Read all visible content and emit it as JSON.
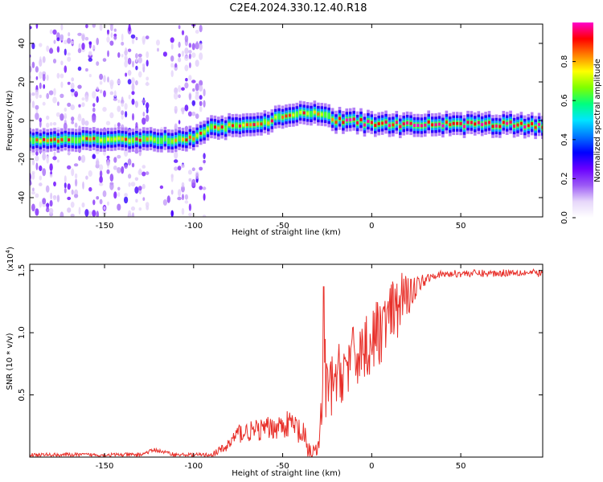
{
  "title": "C2E4.2024.330.12.40.R18",
  "colors": {
    "snr_line": "#e8302a",
    "colormap": [
      "#ffffff",
      "#e6d6fa",
      "#9b59f5",
      "#6a00ff",
      "#0000ff",
      "#0077ff",
      "#00e5ff",
      "#00ff7f",
      "#7fff00",
      "#ffff00",
      "#ff8000",
      "#ff0000",
      "#ff00cc"
    ]
  },
  "chart_data": [
    {
      "type": "heatmap",
      "name": "spectrogram",
      "xlabel": "Height of straight line (km)",
      "ylabel": "Frequency (Hz)",
      "xlim": [
        -192,
        96
      ],
      "ylim": [
        -50,
        50
      ],
      "xticks": [
        -150,
        -100,
        -50,
        0,
        50
      ],
      "yticks": [
        -40,
        -20,
        0,
        20,
        40
      ],
      "ridge": {
        "x": [
          -192,
          -170,
          -150,
          -130,
          -110,
          -100,
          -95,
          -90,
          -80,
          -70,
          -60,
          -50,
          -40,
          -30,
          -25,
          -20,
          -10,
          0,
          20,
          50,
          80,
          96
        ],
        "y": [
          -10,
          -10,
          -10,
          -10,
          -10,
          -9,
          -6,
          -4,
          -3,
          -1,
          -1,
          2,
          3,
          4,
          2,
          0,
          0,
          -2,
          -2,
          -2,
          -2,
          -3
        ]
      },
      "colorbar": {
        "label": "Normalized spectral amplitude",
        "range": [
          0,
          1
        ],
        "ticks": [
          "0.0",
          "0.2",
          "0.4",
          "0.6",
          "0.8"
        ]
      }
    },
    {
      "type": "line",
      "name": "snr",
      "xlabel": "Height of straight line (km)",
      "ylabel": "SNR (10 * v/v)",
      "exponent_label": "(x10",
      "exponent_power": "4",
      "exponent_close": ")",
      "xlim": [
        -192,
        96
      ],
      "ylim": [
        0,
        1.55
      ],
      "xticks": [
        -150,
        -100,
        -50,
        0,
        50
      ],
      "yticks": [
        "0.5",
        "1.0",
        "1.5"
      ],
      "envelope": {
        "x": [
          -192,
          -130,
          -122,
          -110,
          -90,
          -82,
          -75,
          -65,
          -55,
          -45,
          -40,
          -35,
          -30,
          -28,
          -27,
          -25,
          -20,
          -15,
          -10,
          -5,
          0,
          5,
          10,
          15,
          20,
          25,
          30,
          35,
          40,
          50,
          60,
          70,
          80,
          96
        ],
        "y": [
          0.02,
          0.02,
          0.06,
          0.02,
          0.02,
          0.08,
          0.2,
          0.22,
          0.25,
          0.28,
          0.2,
          0.05,
          0.07,
          0.4,
          0.6,
          0.55,
          0.65,
          0.75,
          0.82,
          0.9,
          0.95,
          1.05,
          1.15,
          1.22,
          1.3,
          1.38,
          1.44,
          1.47,
          1.47,
          1.48,
          1.48,
          1.48,
          1.49,
          1.48
        ]
      },
      "noise": {
        "x": [
          -192,
          -90,
          -85,
          -75,
          -50,
          -38,
          -30,
          -28,
          -25,
          0,
          15,
          20,
          25,
          35,
          96
        ],
        "a": [
          0.015,
          0.015,
          0.04,
          0.08,
          0.1,
          0.14,
          0.05,
          0.3,
          0.25,
          0.28,
          0.26,
          0.18,
          0.08,
          0.03,
          0.03
        ]
      },
      "spikes": [
        {
          "x": -27,
          "y": 1.37
        },
        {
          "x": -26,
          "y": 0.95
        },
        {
          "x": 17,
          "y": 1.48
        },
        {
          "x": 22,
          "y": 1.43
        }
      ]
    }
  ]
}
